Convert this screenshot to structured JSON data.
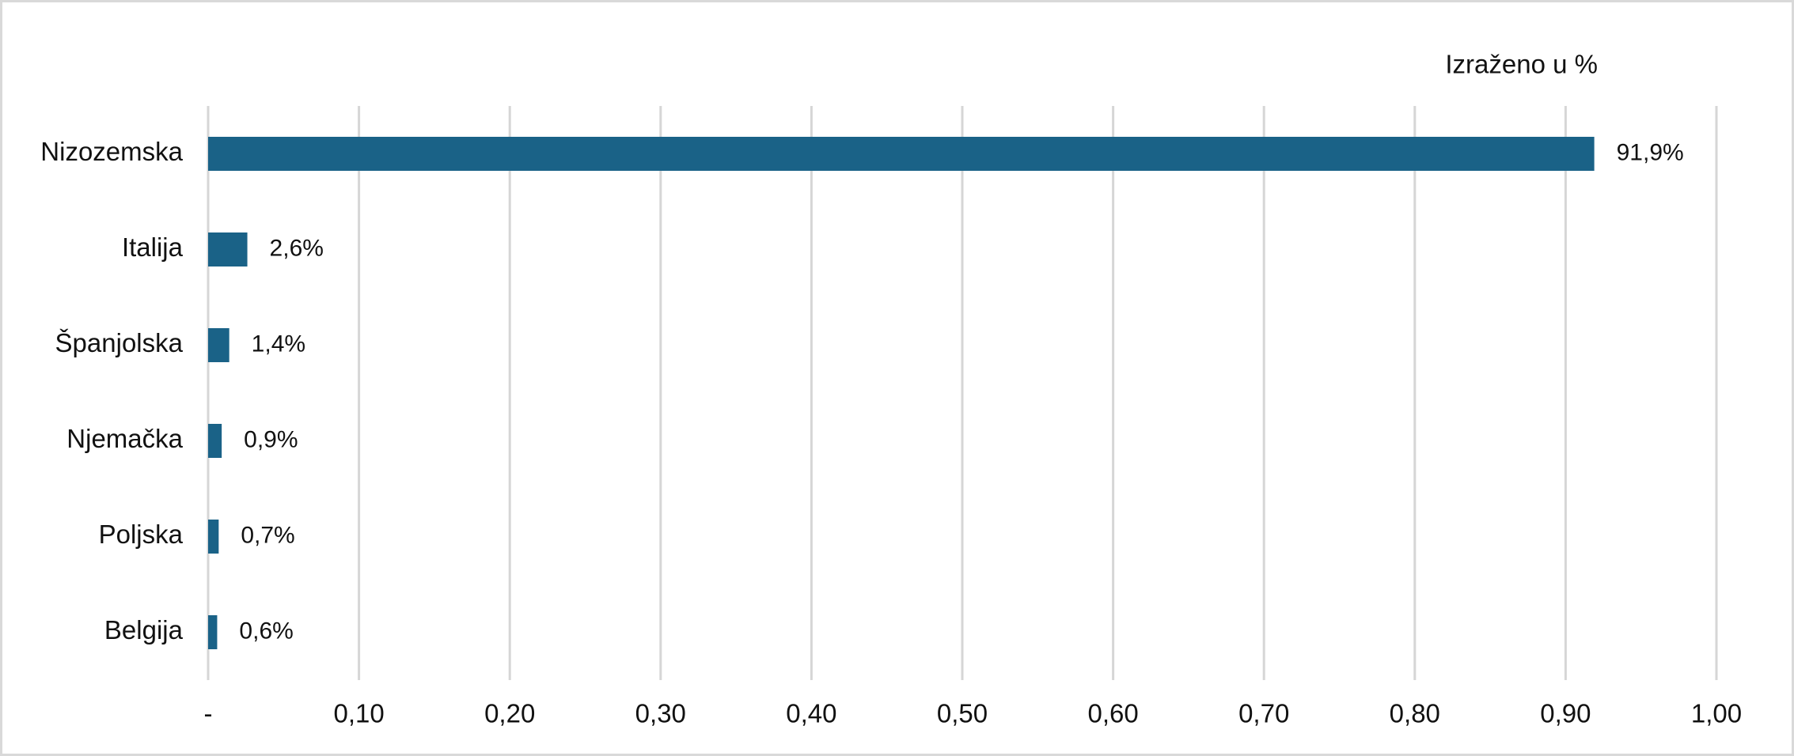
{
  "chart_data": {
    "type": "bar",
    "orientation": "horizontal",
    "annotation": "Izraženo u %",
    "categories": [
      "Nizozemska",
      "Italija",
      "Španjolska",
      "Njemačka",
      "Poljska",
      "Belgija"
    ],
    "values": [
      0.919,
      0.026,
      0.014,
      0.009,
      0.007,
      0.006
    ],
    "value_labels": [
      "91,9%",
      "2,6%",
      "1,4%",
      "0,9%",
      "0,7%",
      "0,6%"
    ],
    "color": "#1a6287",
    "xlim": [
      0,
      1
    ],
    "xticks": [
      {
        "value": 0,
        "label": "-"
      },
      {
        "value": 0.1,
        "label": "0,10"
      },
      {
        "value": 0.2,
        "label": "0,20"
      },
      {
        "value": 0.3,
        "label": "0,30"
      },
      {
        "value": 0.4,
        "label": "0,40"
      },
      {
        "value": 0.5,
        "label": "0,50"
      },
      {
        "value": 0.6,
        "label": "0,60"
      },
      {
        "value": 0.7,
        "label": "0,70"
      },
      {
        "value": 0.8,
        "label": "0,80"
      },
      {
        "value": 0.9,
        "label": "0,90"
      },
      {
        "value": 1,
        "label": "1,00"
      }
    ],
    "grid": true
  }
}
